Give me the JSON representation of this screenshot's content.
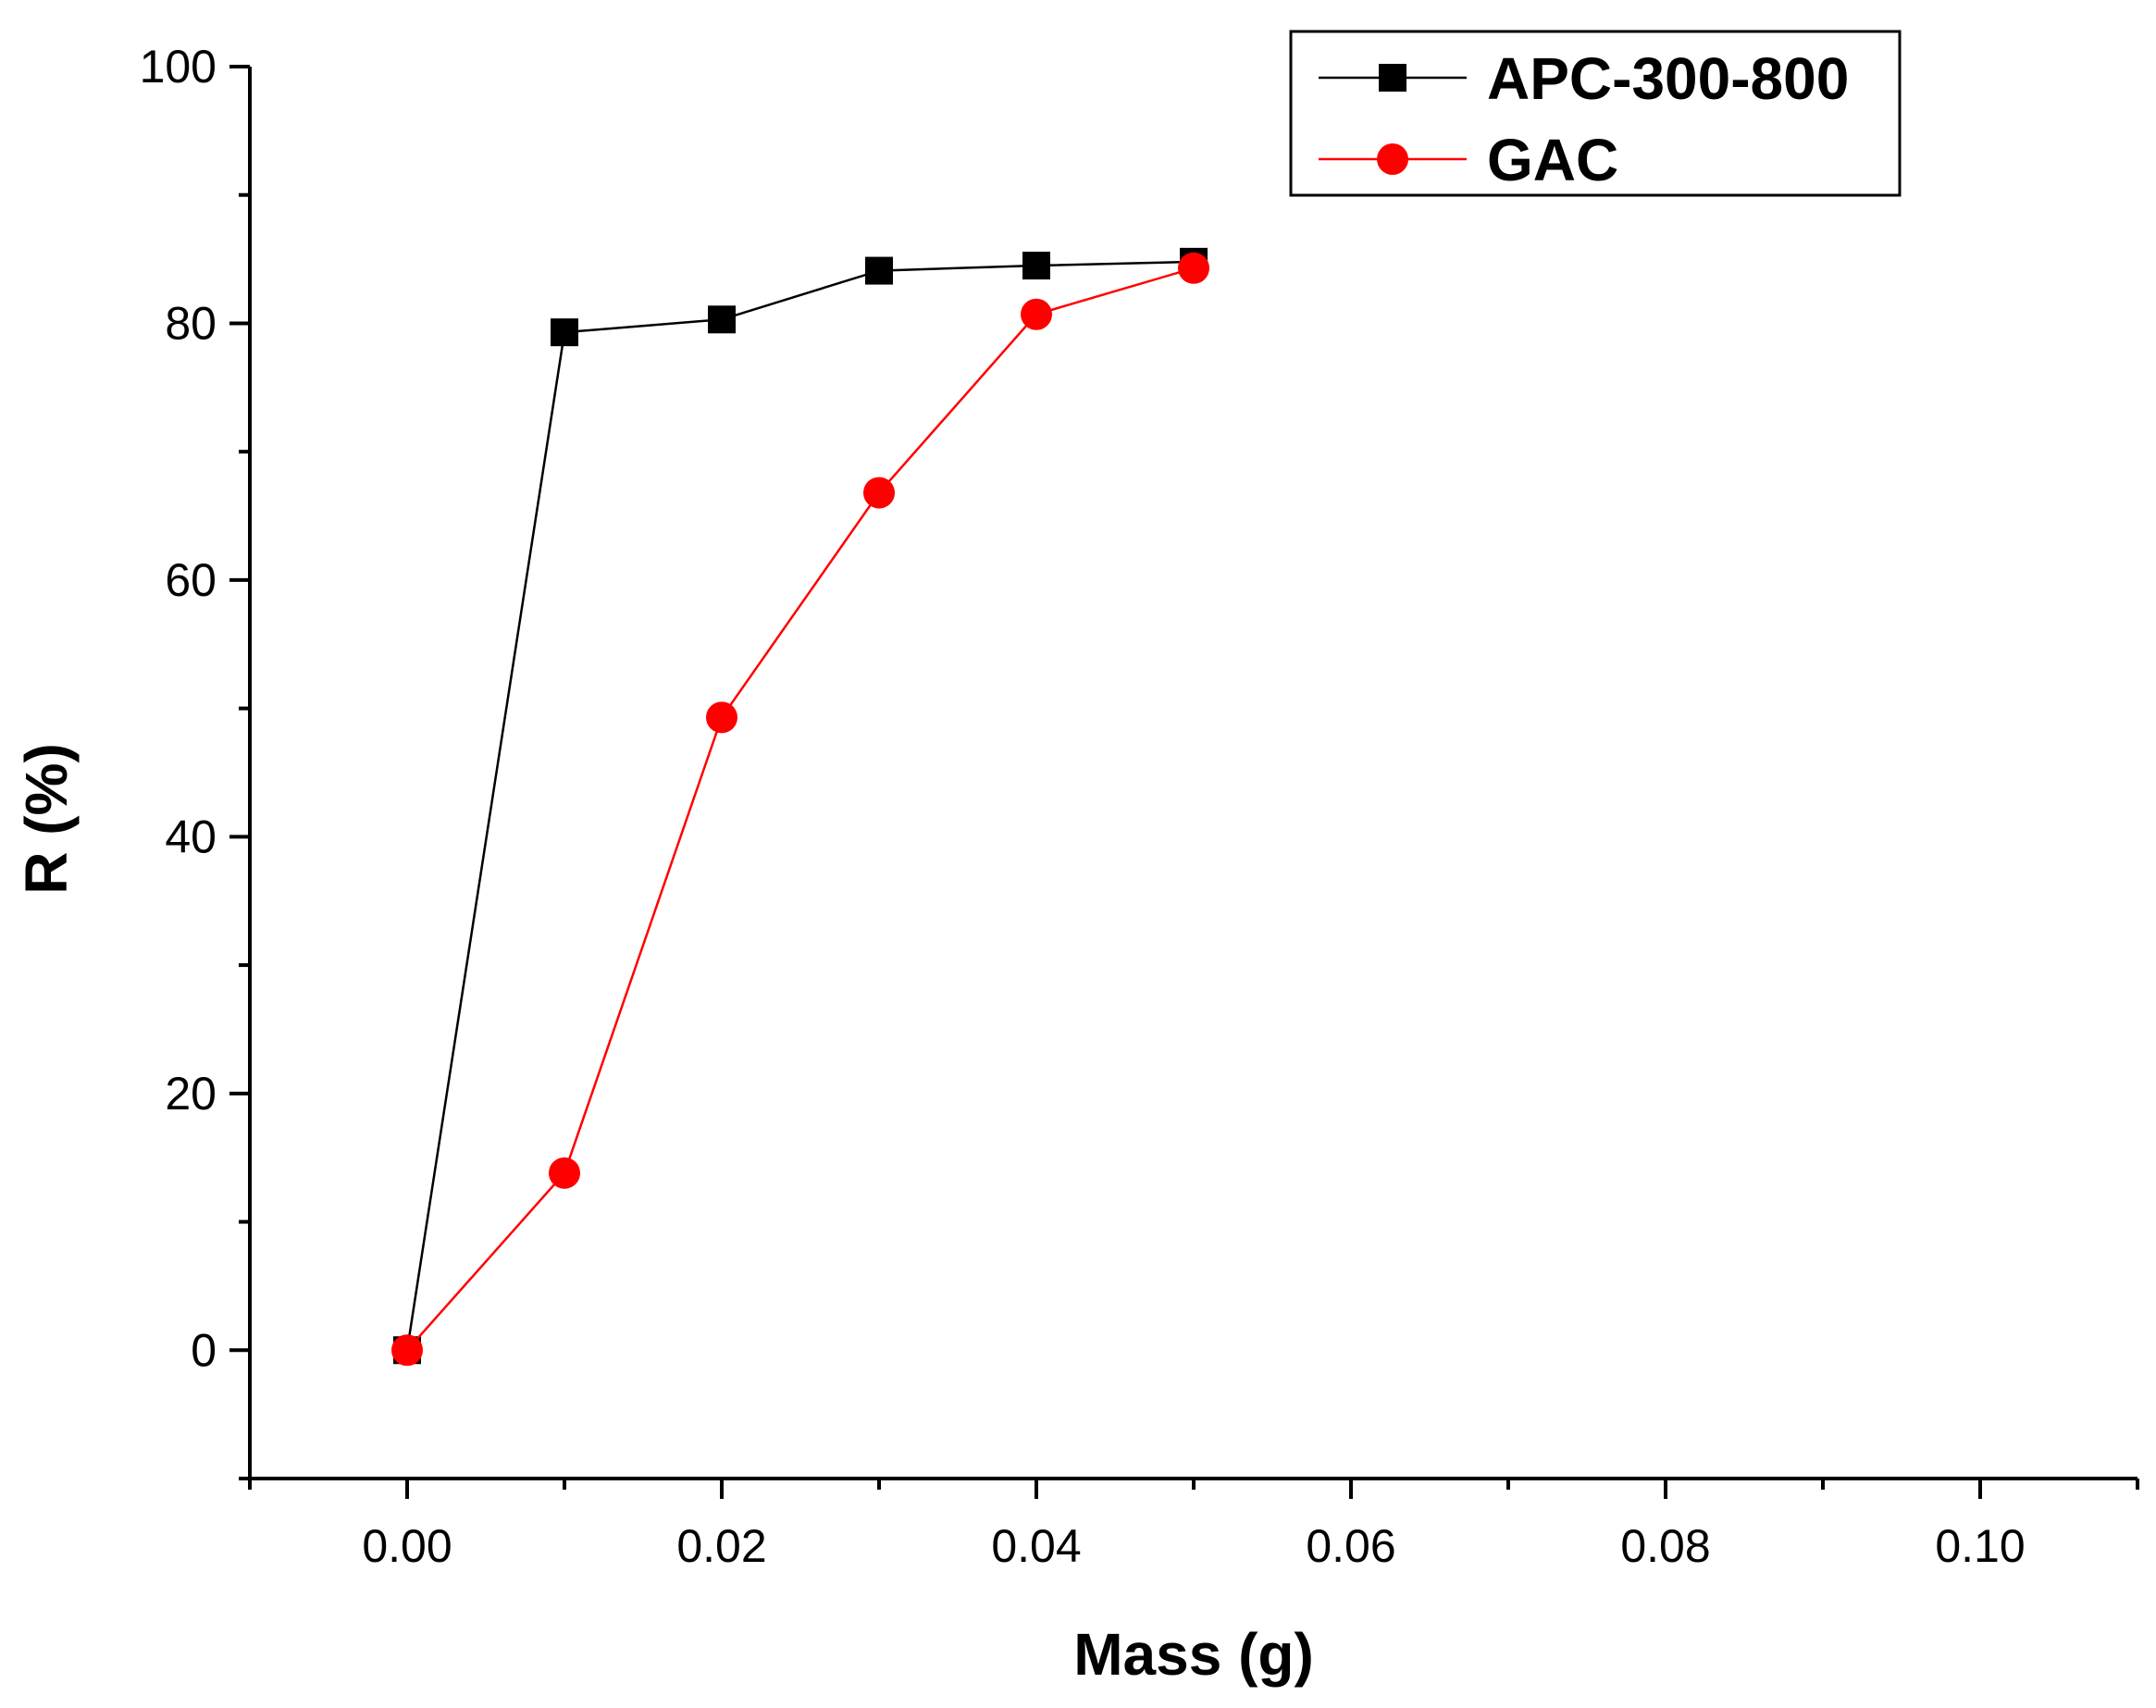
{
  "chart_data": {
    "type": "line",
    "title": "",
    "xlabel": "Mass (g)",
    "ylabel": "R (%)",
    "xlim": [
      -0.01,
      0.11
    ],
    "ylim": [
      -10,
      100
    ],
    "xticks": [
      0.0,
      0.02,
      0.04,
      0.06,
      0.08,
      0.1
    ],
    "xtick_labels": [
      "0.00",
      "0.02",
      "0.04",
      "0.06",
      "0.08",
      "0.10"
    ],
    "xminor": [
      -0.01,
      0.01,
      0.03,
      0.05,
      0.07,
      0.09,
      0.11
    ],
    "yticks": [
      0,
      20,
      40,
      60,
      80,
      100
    ],
    "ytick_labels": [
      "0",
      "20",
      "40",
      "60",
      "80",
      "100"
    ],
    "yminor": [
      -10,
      10,
      30,
      50,
      70,
      90
    ],
    "grid": false,
    "legend_position": "top-right",
    "series": [
      {
        "name": "APC-300-800",
        "color": "#000000",
        "marker": "square",
        "x": [
          0.0,
          0.01,
          0.02,
          0.03,
          0.04,
          0.05
        ],
        "y": [
          0.0,
          79.3,
          80.3,
          84.1,
          84.5,
          84.8
        ]
      },
      {
        "name": "GAC",
        "color": "#ff0000",
        "marker": "circle",
        "x": [
          0.0,
          0.01,
          0.02,
          0.03,
          0.04,
          0.05
        ],
        "y": [
          0.0,
          13.8,
          49.3,
          66.8,
          80.7,
          84.3
        ]
      }
    ]
  }
}
